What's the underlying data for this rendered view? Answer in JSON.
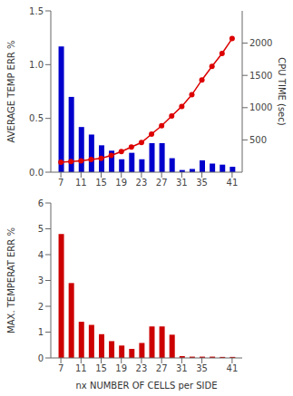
{
  "chart_data": [
    {
      "type": "bar",
      "x": [
        7,
        9,
        11,
        13,
        15,
        17,
        19,
        21,
        23,
        25,
        27,
        29,
        31,
        33,
        35,
        37,
        39,
        41
      ],
      "xlim": [
        5,
        43
      ],
      "xticks": [
        7,
        11,
        15,
        19,
        23,
        27,
        31,
        35,
        41
      ],
      "ylabel": "AVERAGE TEMP  ERR %",
      "y2label": "CPU TIME  (sec)",
      "ylim": [
        0,
        1.5
      ],
      "yticks": [
        {
          "value": 0,
          "label": "0.0"
        },
        0.5,
        {
          "value": 1,
          "label": "1.0"
        },
        1.5
      ],
      "y2lim": [
        0,
        2500
      ],
      "y2ticks": [
        500,
        1000,
        1500,
        2000
      ],
      "grid": false,
      "series": [
        {
          "type": "bar",
          "color": "#0000cc",
          "values": [
            1.17,
            0.7,
            0.42,
            0.35,
            0.25,
            0.2,
            0.12,
            0.18,
            0.12,
            0.27,
            0.27,
            0.13,
            0.02,
            0.03,
            0.11,
            0.08,
            0.07,
            0.05
          ]
        },
        {
          "type": "line",
          "axis": "y2",
          "color": "#dd0000",
          "marker": "circle",
          "values": [
            155,
            165,
            175,
            195,
            215,
            260,
            320,
            390,
            460,
            590,
            720,
            870,
            1020,
            1200,
            1430,
            1640,
            1840,
            2070
          ]
        }
      ]
    },
    {
      "type": "bar",
      "x": [
        7,
        9,
        11,
        13,
        15,
        17,
        19,
        21,
        23,
        25,
        27,
        29,
        31,
        33,
        35,
        37,
        39,
        41
      ],
      "xlim": [
        5,
        43
      ],
      "xticks": [
        7,
        11,
        15,
        19,
        23,
        27,
        31,
        35,
        41
      ],
      "xlabel": "nx   NUMBER OF CELLS per SIDE",
      "ylabel": "MAX. TEMPERAT  ERR %",
      "ylim": [
        0,
        6
      ],
      "yticks": [
        0,
        1,
        2,
        3,
        4,
        5,
        6
      ],
      "grid": false,
      "series": [
        {
          "type": "bar",
          "color": "#cc0000",
          "values": [
            4.8,
            2.9,
            1.4,
            1.28,
            0.92,
            0.65,
            0.48,
            0.35,
            0.58,
            1.22,
            1.22,
            0.9,
            0.07,
            0.05,
            0.05,
            0.05,
            0.04,
            0.04
          ]
        }
      ]
    }
  ]
}
